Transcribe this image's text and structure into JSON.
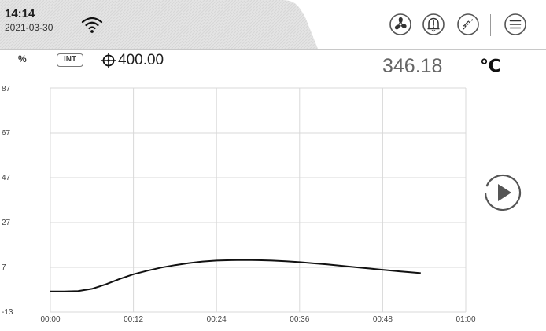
{
  "status": {
    "time": "14:14",
    "date": "2021-03-30"
  },
  "icons": {
    "wifi": "wifi-icon",
    "fan": "fan-icon",
    "alarm": "alarm-bell-icon",
    "trend": "trend-icon",
    "menu": "menu-icon",
    "play": "play-icon"
  },
  "header": {
    "percent_label": "%",
    "mode_badge": "INT",
    "setpoint": "400.00",
    "process_value": "346.18",
    "unit": "℃"
  },
  "chart_data": {
    "type": "line",
    "y_ticks": [
      "87",
      "67",
      "47",
      "27",
      "7",
      "-13"
    ],
    "x_ticks": [
      "00:00",
      "00:12",
      "00:24",
      "00:36",
      "00:48",
      "01:00"
    ],
    "ylim": [
      -13,
      87
    ],
    "xlim_minutes": [
      0,
      60
    ],
    "grid": true,
    "series": [
      {
        "color": "#111111",
        "points": [
          [
            0,
            -3.8
          ],
          [
            2,
            -3.8
          ],
          [
            4,
            -3.6
          ],
          [
            6,
            -2.6
          ],
          [
            8,
            -0.6
          ],
          [
            10,
            1.8
          ],
          [
            12,
            3.9
          ],
          [
            14,
            5.5
          ],
          [
            16,
            6.9
          ],
          [
            18,
            8.0
          ],
          [
            20,
            8.9
          ],
          [
            22,
            9.6
          ],
          [
            24,
            10.0
          ],
          [
            26,
            10.2
          ],
          [
            28,
            10.3
          ],
          [
            30,
            10.2
          ],
          [
            32,
            10.0
          ],
          [
            34,
            9.7
          ],
          [
            36,
            9.3
          ],
          [
            38,
            8.8
          ],
          [
            40,
            8.3
          ],
          [
            42,
            7.7
          ],
          [
            44,
            7.1
          ],
          [
            46,
            6.5
          ],
          [
            48,
            5.9
          ],
          [
            50,
            5.3
          ],
          [
            52,
            4.8
          ],
          [
            53.5,
            4.4
          ]
        ]
      }
    ]
  },
  "colors": {
    "grid": "#d8d8d8",
    "tab": "#e6e6e6",
    "line": "#111111"
  }
}
